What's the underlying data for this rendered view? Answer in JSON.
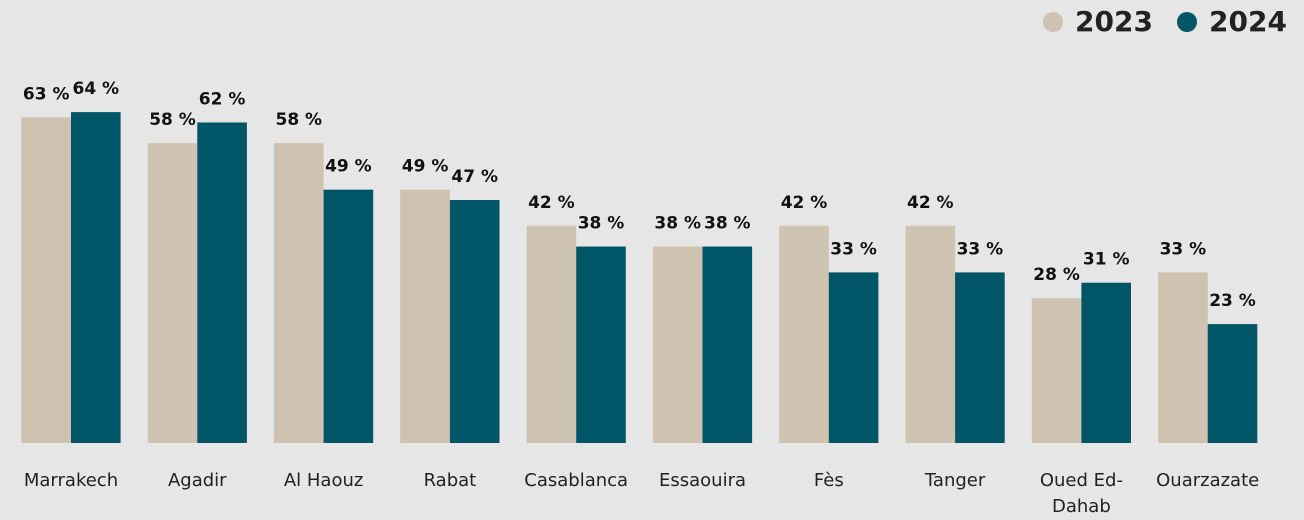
{
  "chart_data": {
    "type": "bar",
    "categories": [
      "Marrakech",
      "Agadir",
      "Al Haouz",
      "Rabat",
      "Casablanca",
      "Essaouira",
      "Fès",
      "Tanger",
      "Oued Ed-Dahab",
      "Ouarzazate"
    ],
    "series": [
      {
        "name": "2023",
        "color": "#cdc3b0",
        "values": [
          63,
          58,
          58,
          49,
          42,
          38,
          42,
          42,
          28,
          33
        ],
        "value_labels": [
          "63 %",
          "58 %",
          "58 %",
          "49 %",
          "42 %",
          "38 %",
          "42 %",
          "42 %",
          "28 %",
          "33 %"
        ]
      },
      {
        "name": "2024",
        "color": "#005566",
        "values": [
          64,
          62,
          49,
          47,
          38,
          38,
          33,
          33,
          31,
          23
        ],
        "value_labels": [
          "64 %",
          "62 %",
          "49 %",
          "47 %",
          "38 %",
          "38 %",
          "33 %",
          "33 %",
          "31 %",
          "23 %"
        ]
      }
    ],
    "ylim": [
      0,
      80
    ],
    "legend": "top-right"
  }
}
